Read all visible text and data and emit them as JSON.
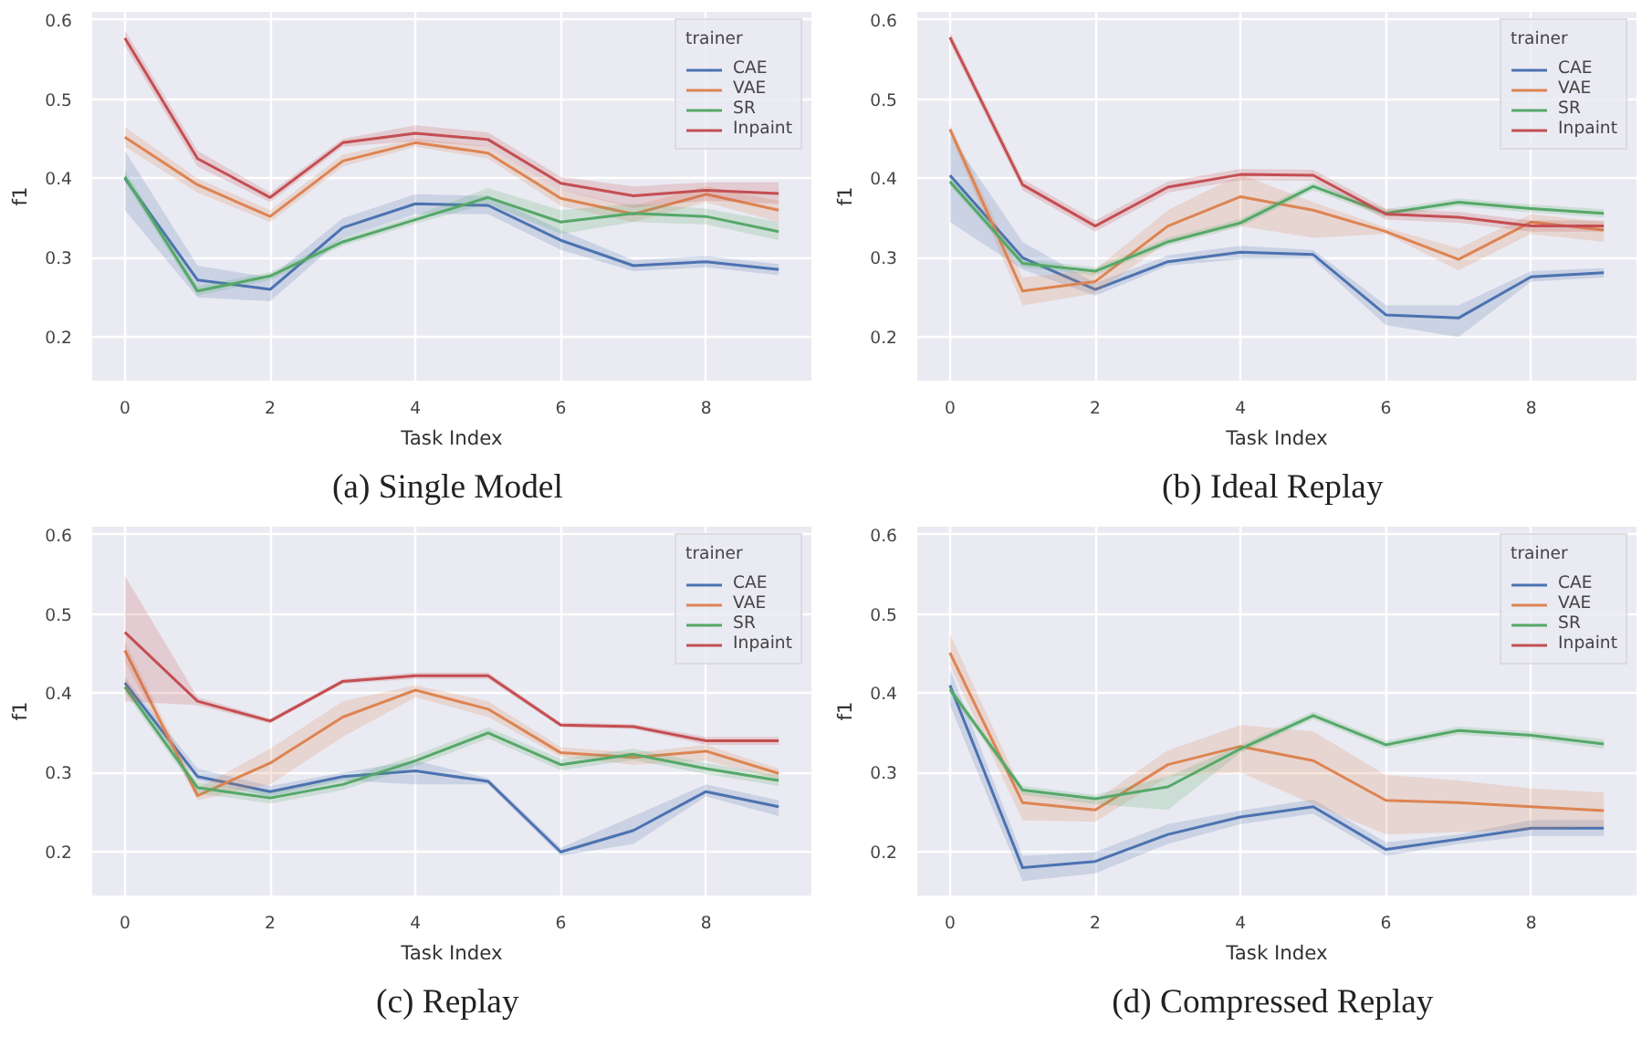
{
  "chart_data": [
    {
      "type": "line",
      "title": "(a)  Single Model",
      "xlabel": "Task Index",
      "ylabel": "f1",
      "legend_title": "trainer",
      "legend": "top right",
      "grid": true,
      "x": [
        0,
        1,
        2,
        3,
        4,
        5,
        6,
        7,
        8,
        9
      ],
      "xlim": [
        -0.45,
        9.45
      ],
      "ylim": [
        0.145,
        0.61
      ],
      "xticks": [
        0,
        2,
        4,
        6,
        8
      ],
      "yticks": [
        0.2,
        0.3,
        0.4,
        0.5,
        0.6
      ],
      "series": [
        {
          "name": "CAE",
          "color": "#4c72b0",
          "values": [
            0.4,
            0.272,
            0.26,
            0.338,
            0.368,
            0.366,
            0.322,
            0.29,
            0.295,
            0.285
          ],
          "lower": [
            0.36,
            0.25,
            0.245,
            0.325,
            0.355,
            0.355,
            0.31,
            0.283,
            0.288,
            0.278
          ],
          "upper": [
            0.435,
            0.29,
            0.275,
            0.35,
            0.38,
            0.378,
            0.335,
            0.297,
            0.302,
            0.292
          ]
        },
        {
          "name": "VAE",
          "color": "#dd8452",
          "values": [
            0.452,
            0.392,
            0.352,
            0.422,
            0.445,
            0.432,
            0.375,
            0.355,
            0.38,
            0.36
          ],
          "lower": [
            0.44,
            0.382,
            0.345,
            0.415,
            0.44,
            0.425,
            0.365,
            0.345,
            0.37,
            0.345
          ],
          "upper": [
            0.465,
            0.4,
            0.36,
            0.43,
            0.45,
            0.44,
            0.385,
            0.365,
            0.39,
            0.372
          ]
        },
        {
          "name": "SR",
          "color": "#55a868",
          "values": [
            0.402,
            0.258,
            0.277,
            0.32,
            0.348,
            0.376,
            0.345,
            0.356,
            0.352,
            0.333
          ],
          "lower": [
            0.395,
            0.252,
            0.272,
            0.315,
            0.343,
            0.368,
            0.33,
            0.345,
            0.342,
            0.322
          ],
          "upper": [
            0.41,
            0.264,
            0.282,
            0.325,
            0.353,
            0.388,
            0.36,
            0.368,
            0.362,
            0.345
          ]
        },
        {
          "name": "Inpaint",
          "color": "#c44e52",
          "values": [
            0.577,
            0.425,
            0.376,
            0.445,
            0.457,
            0.449,
            0.394,
            0.378,
            0.385,
            0.381
          ],
          "lower": [
            0.567,
            0.415,
            0.37,
            0.44,
            0.447,
            0.44,
            0.385,
            0.363,
            0.372,
            0.368
          ],
          "upper": [
            0.587,
            0.435,
            0.382,
            0.45,
            0.467,
            0.458,
            0.402,
            0.39,
            0.395,
            0.395
          ]
        }
      ]
    },
    {
      "type": "line",
      "title": "(b)  Ideal Replay",
      "xlabel": "Task Index",
      "ylabel": "f1",
      "legend_title": "trainer",
      "legend": "top right",
      "grid": true,
      "x": [
        0,
        1,
        2,
        3,
        4,
        5,
        6,
        7,
        8,
        9
      ],
      "xlim": [
        -0.45,
        9.45
      ],
      "ylim": [
        0.145,
        0.61
      ],
      "xticks": [
        0,
        2,
        4,
        6,
        8
      ],
      "yticks": [
        0.2,
        0.3,
        0.4,
        0.5,
        0.6
      ],
      "series": [
        {
          "name": "CAE",
          "color": "#4c72b0",
          "values": [
            0.404,
            0.3,
            0.26,
            0.295,
            0.307,
            0.304,
            0.228,
            0.224,
            0.276,
            0.281
          ],
          "lower": [
            0.345,
            0.285,
            0.252,
            0.29,
            0.298,
            0.298,
            0.215,
            0.2,
            0.27,
            0.275
          ],
          "upper": [
            0.455,
            0.32,
            0.268,
            0.303,
            0.315,
            0.31,
            0.24,
            0.24,
            0.283,
            0.287
          ]
        },
        {
          "name": "VAE",
          "color": "#dd8452",
          "values": [
            0.462,
            0.258,
            0.27,
            0.34,
            0.377,
            0.36,
            0.333,
            0.298,
            0.345,
            0.335
          ],
          "lower": [
            0.455,
            0.24,
            0.255,
            0.32,
            0.34,
            0.325,
            0.33,
            0.284,
            0.33,
            0.32
          ],
          "upper": [
            0.468,
            0.275,
            0.285,
            0.36,
            0.405,
            0.37,
            0.338,
            0.312,
            0.355,
            0.345
          ]
        },
        {
          "name": "SR",
          "color": "#55a868",
          "values": [
            0.396,
            0.293,
            0.283,
            0.32,
            0.344,
            0.39,
            0.356,
            0.37,
            0.362,
            0.356
          ],
          "lower": [
            0.391,
            0.288,
            0.278,
            0.315,
            0.339,
            0.385,
            0.351,
            0.365,
            0.357,
            0.351
          ],
          "upper": [
            0.401,
            0.298,
            0.288,
            0.325,
            0.349,
            0.395,
            0.361,
            0.375,
            0.367,
            0.361
          ]
        },
        {
          "name": "Inpaint",
          "color": "#c44e52",
          "values": [
            0.578,
            0.392,
            0.34,
            0.389,
            0.405,
            0.404,
            0.355,
            0.351,
            0.34,
            0.34
          ],
          "lower": [
            0.571,
            0.385,
            0.333,
            0.382,
            0.398,
            0.397,
            0.348,
            0.344,
            0.333,
            0.333
          ],
          "upper": [
            0.585,
            0.399,
            0.347,
            0.396,
            0.412,
            0.411,
            0.362,
            0.358,
            0.347,
            0.347
          ]
        }
      ]
    },
    {
      "type": "line",
      "title": "(c)  Replay",
      "xlabel": "Task Index",
      "ylabel": "f1",
      "legend_title": "trainer",
      "legend": "top right",
      "grid": true,
      "x": [
        0,
        1,
        2,
        3,
        4,
        5,
        6,
        7,
        8,
        9
      ],
      "xlim": [
        -0.45,
        9.45
      ],
      "ylim": [
        0.145,
        0.61
      ],
      "xticks": [
        0,
        2,
        4,
        6,
        8
      ],
      "yticks": [
        0.2,
        0.3,
        0.4,
        0.5,
        0.6
      ],
      "series": [
        {
          "name": "CAE",
          "color": "#4c72b0",
          "values": [
            0.413,
            0.295,
            0.276,
            0.295,
            0.302,
            0.289,
            0.2,
            0.227,
            0.276,
            0.257
          ],
          "lower": [
            0.405,
            0.29,
            0.27,
            0.29,
            0.285,
            0.285,
            0.195,
            0.21,
            0.27,
            0.245
          ],
          "upper": [
            0.42,
            0.305,
            0.283,
            0.3,
            0.315,
            0.293,
            0.205,
            0.245,
            0.285,
            0.265
          ]
        },
        {
          "name": "VAE",
          "color": "#dd8452",
          "values": [
            0.454,
            0.271,
            0.312,
            0.37,
            0.404,
            0.38,
            0.325,
            0.319,
            0.327,
            0.299
          ],
          "lower": [
            0.44,
            0.265,
            0.285,
            0.345,
            0.395,
            0.37,
            0.32,
            0.31,
            0.315,
            0.292
          ],
          "upper": [
            0.465,
            0.28,
            0.33,
            0.39,
            0.41,
            0.39,
            0.332,
            0.325,
            0.335,
            0.305
          ]
        },
        {
          "name": "SR",
          "color": "#55a868",
          "values": [
            0.408,
            0.281,
            0.268,
            0.285,
            0.315,
            0.35,
            0.31,
            0.323,
            0.305,
            0.29
          ],
          "lower": [
            0.401,
            0.274,
            0.261,
            0.278,
            0.308,
            0.343,
            0.303,
            0.316,
            0.298,
            0.283
          ],
          "upper": [
            0.415,
            0.288,
            0.275,
            0.292,
            0.322,
            0.357,
            0.317,
            0.33,
            0.312,
            0.297
          ]
        },
        {
          "name": "Inpaint",
          "color": "#c44e52",
          "values": [
            0.477,
            0.39,
            0.365,
            0.415,
            0.422,
            0.422,
            0.36,
            0.358,
            0.34,
            0.34
          ],
          "lower": [
            0.39,
            0.385,
            0.362,
            0.412,
            0.418,
            0.418,
            0.357,
            0.355,
            0.335,
            0.335
          ],
          "upper": [
            0.548,
            0.395,
            0.368,
            0.418,
            0.426,
            0.426,
            0.363,
            0.361,
            0.345,
            0.345
          ]
        }
      ]
    },
    {
      "type": "line",
      "title": "(d)  Compressed Replay",
      "xlabel": "Task Index",
      "ylabel": "f1",
      "legend_title": "trainer",
      "legend": "top right",
      "grid": true,
      "x": [
        0,
        1,
        2,
        3,
        4,
        5,
        6,
        7,
        8,
        9
      ],
      "xlim": [
        -0.45,
        9.45
      ],
      "ylim": [
        0.145,
        0.61
      ],
      "xticks": [
        0,
        2,
        4,
        6,
        8
      ],
      "yticks": [
        0.2,
        0.3,
        0.4,
        0.5,
        0.6
      ],
      "series": [
        {
          "name": "CAE",
          "color": "#4c72b0",
          "values": [
            0.41,
            0.18,
            0.188,
            0.222,
            0.244,
            0.257,
            0.203,
            0.216,
            0.23,
            0.23
          ],
          "lower": [
            0.385,
            0.163,
            0.173,
            0.21,
            0.235,
            0.248,
            0.195,
            0.21,
            0.22,
            0.22
          ],
          "upper": [
            0.43,
            0.195,
            0.2,
            0.235,
            0.252,
            0.266,
            0.212,
            0.222,
            0.24,
            0.24
          ]
        },
        {
          "name": "VAE",
          "color": "#dd8452",
          "values": [
            0.451,
            0.262,
            0.253,
            0.31,
            0.333,
            0.315,
            0.265,
            0.262,
            0.257,
            0.252
          ],
          "lower": [
            0.435,
            0.24,
            0.238,
            0.295,
            0.3,
            0.26,
            0.222,
            0.225,
            0.228,
            0.232
          ],
          "upper": [
            0.475,
            0.275,
            0.265,
            0.328,
            0.36,
            0.352,
            0.297,
            0.29,
            0.28,
            0.275
          ]
        },
        {
          "name": "SR",
          "color": "#55a868",
          "values": [
            0.405,
            0.278,
            0.267,
            0.282,
            0.33,
            0.372,
            0.335,
            0.353,
            0.347,
            0.336
          ],
          "lower": [
            0.4,
            0.272,
            0.26,
            0.253,
            0.325,
            0.367,
            0.33,
            0.348,
            0.342,
            0.33
          ],
          "upper": [
            0.41,
            0.283,
            0.272,
            0.295,
            0.335,
            0.377,
            0.34,
            0.358,
            0.352,
            0.342
          ]
        },
        {
          "name": "Inpaint",
          "color": "#c44e52",
          "values": [
            null,
            null,
            null,
            null,
            null,
            null,
            null,
            null,
            null,
            null
          ]
        }
      ]
    }
  ]
}
